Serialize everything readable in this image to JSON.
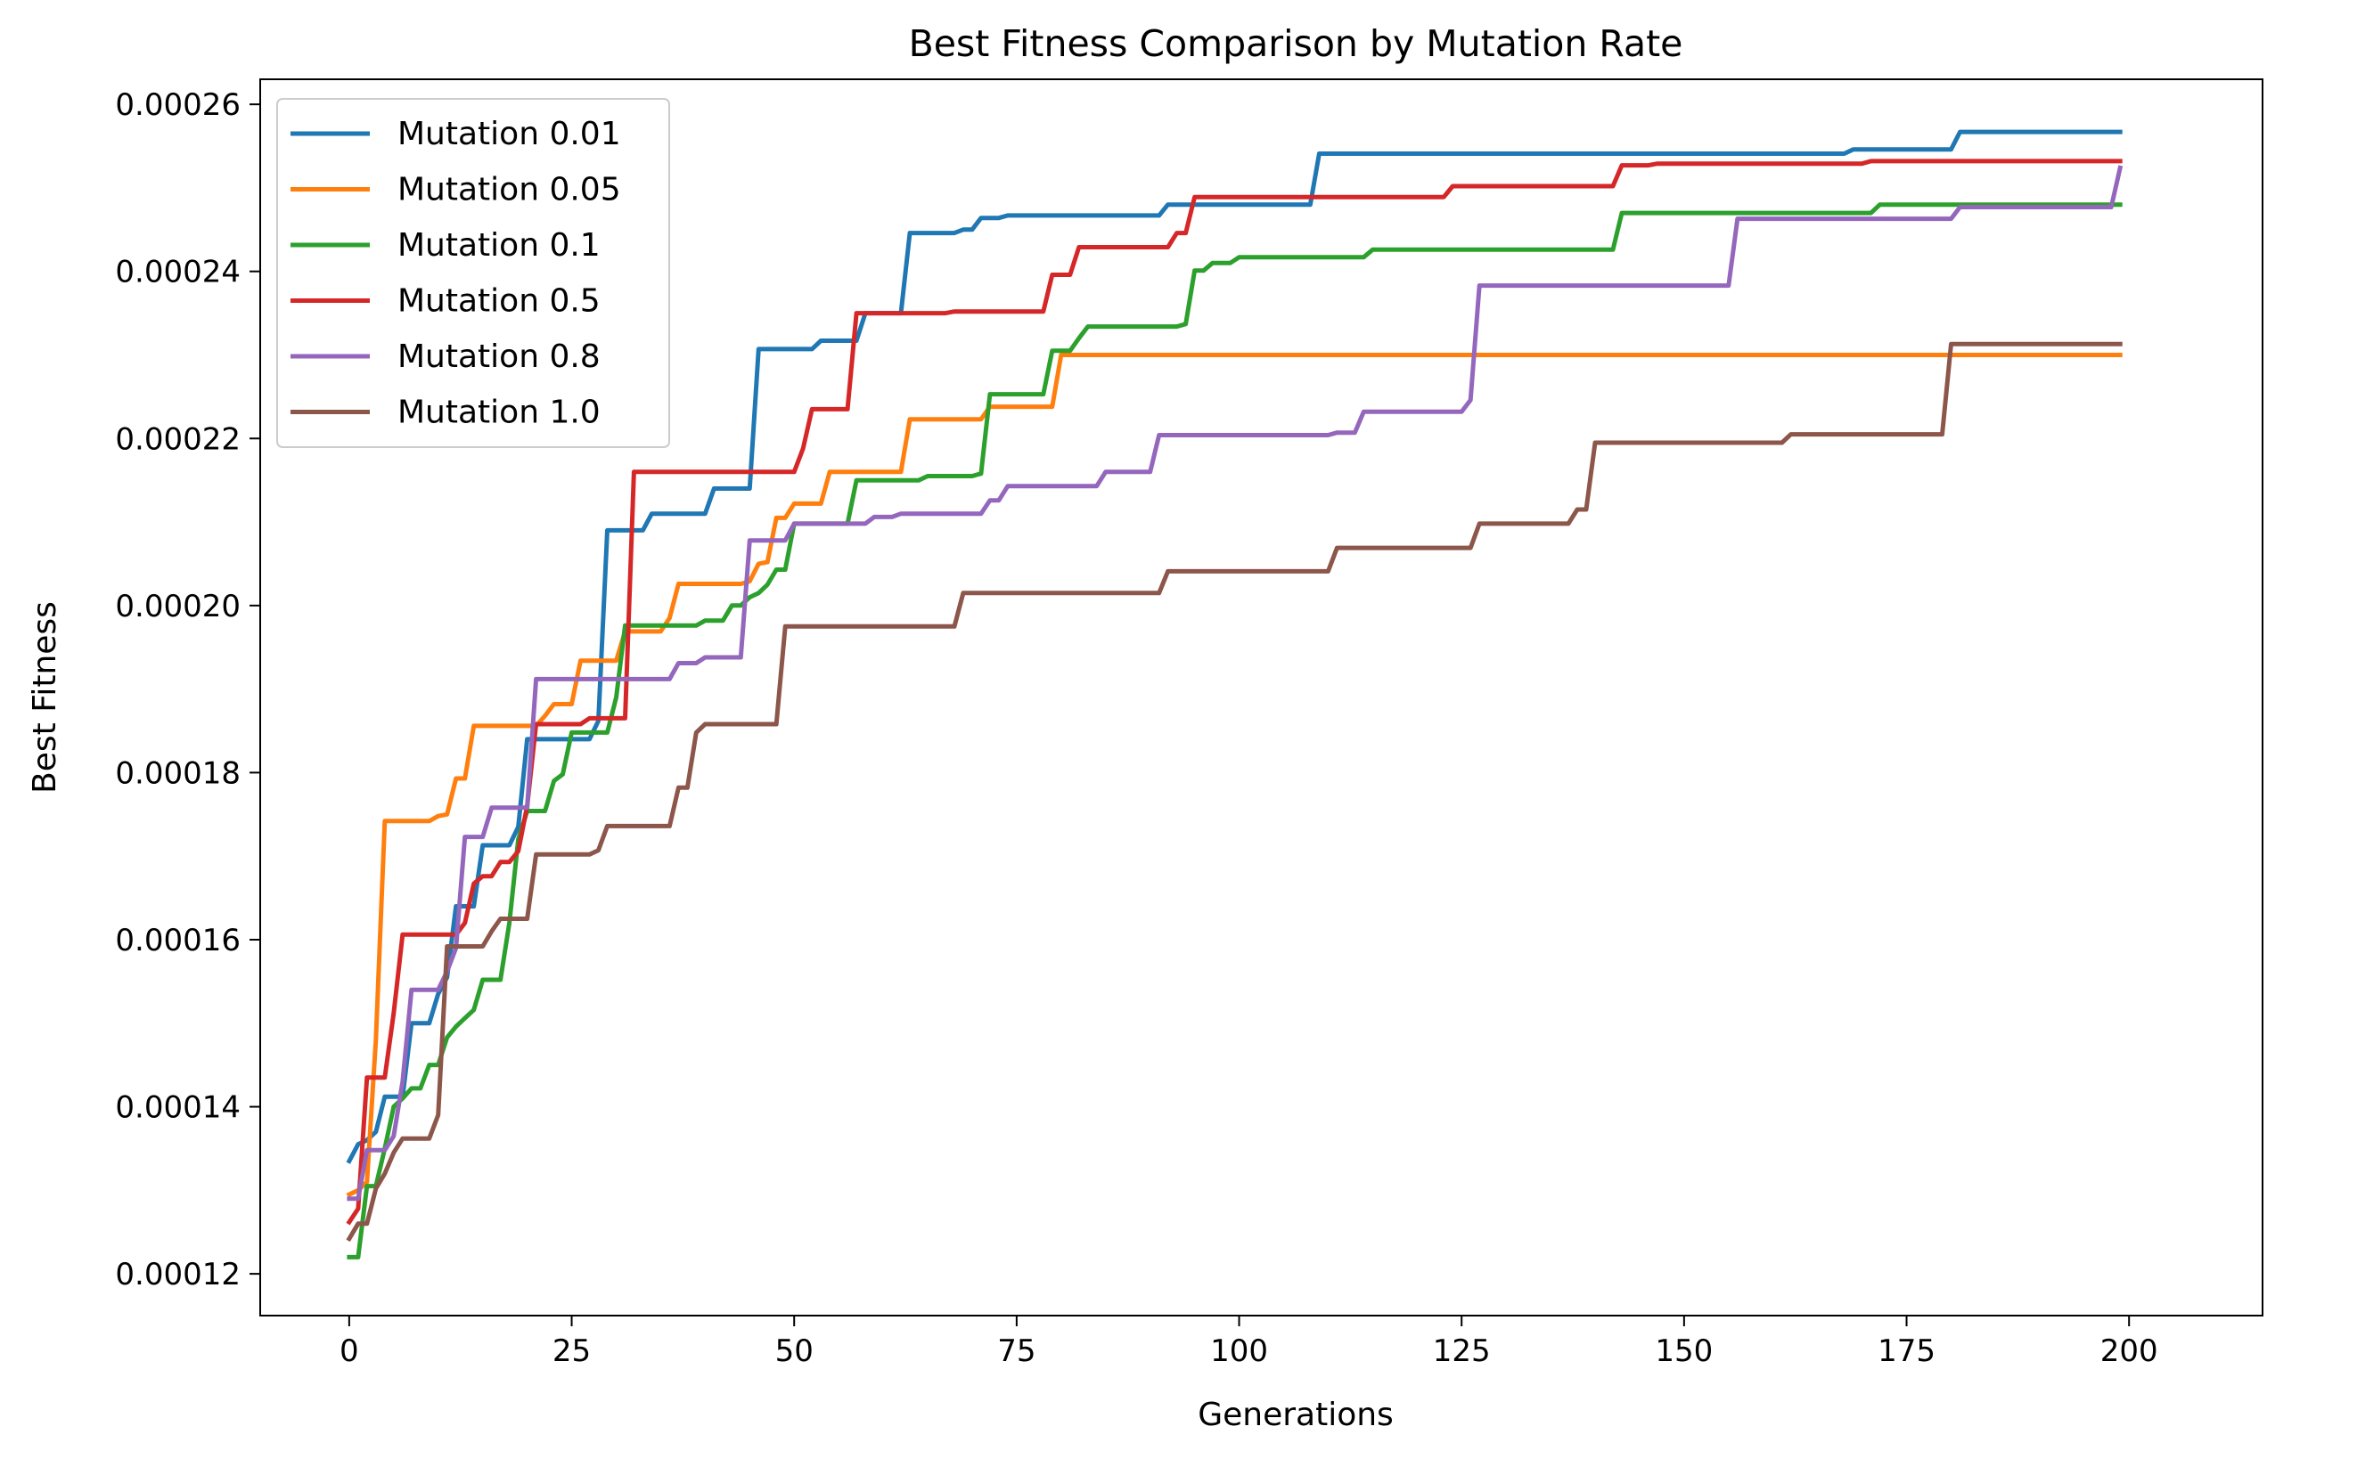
{
  "chart_data": {
    "type": "line",
    "title": "Best Fitness Comparison by Mutation Rate",
    "xlabel": "Generations",
    "ylabel": "Best Fitness",
    "xlim": [
      -10,
      215
    ],
    "ylim": [
      0.000115,
      0.000263
    ],
    "xticks": [
      0,
      25,
      50,
      75,
      100,
      125,
      150,
      175,
      200
    ],
    "xtick_labels": [
      "0",
      "25",
      "50",
      "75",
      "100",
      "125",
      "150",
      "175",
      "200"
    ],
    "yticks": [
      0.00012,
      0.00014,
      0.00016,
      0.00018,
      0.0002,
      0.00022,
      0.00024,
      0.00026
    ],
    "ytick_labels": [
      "0.00012",
      "0.00014",
      "0.00016",
      "0.00018",
      "0.00020",
      "0.00022",
      "0.00024",
      "0.00026"
    ],
    "grid": false,
    "legend_position": "top-left",
    "series": [
      {
        "name": "Mutation 0.01",
        "color": "#1f77b4",
        "points": [
          [
            0,
            0.0001335
          ],
          [
            1,
            0.0001355
          ],
          [
            2,
            0.000136
          ],
          [
            3,
            0.000137
          ],
          [
            4,
            0.0001412
          ],
          [
            6,
            0.0001412
          ],
          [
            7,
            0.00015
          ],
          [
            9,
            0.00015
          ],
          [
            10,
            0.0001535
          ],
          [
            11,
            0.0001555
          ],
          [
            12,
            0.000164
          ],
          [
            14,
            0.000164
          ],
          [
            15,
            0.0001713
          ],
          [
            18,
            0.0001713
          ],
          [
            19,
            0.0001735
          ],
          [
            20,
            0.000184
          ],
          [
            27,
            0.000184
          ],
          [
            28,
            0.0001862
          ],
          [
            29,
            0.000209
          ],
          [
            33,
            0.000209
          ],
          [
            34,
            0.000211
          ],
          [
            40,
            0.000211
          ],
          [
            41,
            0.000214
          ],
          [
            45,
            0.000214
          ],
          [
            46,
            0.0002307
          ],
          [
            52,
            0.0002307
          ],
          [
            53,
            0.0002317
          ],
          [
            57,
            0.0002317
          ],
          [
            58,
            0.000235
          ],
          [
            62,
            0.000235
          ],
          [
            63,
            0.0002446
          ],
          [
            68,
            0.0002446
          ],
          [
            69,
            0.000245
          ],
          [
            70,
            0.000245
          ],
          [
            71,
            0.0002464
          ],
          [
            73,
            0.0002464
          ],
          [
            74,
            0.0002467
          ],
          [
            91,
            0.0002467
          ],
          [
            92,
            0.000248
          ],
          [
            108,
            0.000248
          ],
          [
            109,
            0.0002541
          ],
          [
            168,
            0.0002541
          ],
          [
            169,
            0.0002546
          ],
          [
            180,
            0.0002546
          ],
          [
            181,
            0.0002567
          ],
          [
            199,
            0.0002567
          ]
        ]
      },
      {
        "name": "Mutation 0.05",
        "color": "#ff7f0e",
        "points": [
          [
            0,
            0.0001295
          ],
          [
            1,
            0.00013
          ],
          [
            2,
            0.000131
          ],
          [
            3,
            0.000148
          ],
          [
            4,
            0.0001742
          ],
          [
            9,
            0.0001742
          ],
          [
            10,
            0.0001748
          ],
          [
            11,
            0.000175
          ],
          [
            12,
            0.0001793
          ],
          [
            13,
            0.0001793
          ],
          [
            14,
            0.0001856
          ],
          [
            21,
            0.0001856
          ],
          [
            22,
            0.0001868
          ],
          [
            23,
            0.0001882
          ],
          [
            25,
            0.0001882
          ],
          [
            26,
            0.0001934
          ],
          [
            30,
            0.0001934
          ],
          [
            31,
            0.0001969
          ],
          [
            35,
            0.0001969
          ],
          [
            36,
            0.0001985
          ],
          [
            37,
            0.0002026
          ],
          [
            44,
            0.0002026
          ],
          [
            45,
            0.0002029
          ],
          [
            46,
            0.000205
          ],
          [
            47,
            0.0002052
          ],
          [
            48,
            0.0002105
          ],
          [
            49,
            0.0002105
          ],
          [
            50,
            0.0002122
          ],
          [
            53,
            0.0002122
          ],
          [
            54,
            0.000216
          ],
          [
            62,
            0.000216
          ],
          [
            63,
            0.0002223
          ],
          [
            71,
            0.0002223
          ],
          [
            72,
            0.0002238
          ],
          [
            79,
            0.0002238
          ],
          [
            80,
            0.00023
          ],
          [
            199,
            0.00023
          ]
        ]
      },
      {
        "name": "Mutation 0.1",
        "color": "#2ca02c",
        "points": [
          [
            0,
            0.000122
          ],
          [
            1,
            0.000122
          ],
          [
            2,
            0.0001305
          ],
          [
            3,
            0.0001305
          ],
          [
            4,
            0.000135
          ],
          [
            5,
            0.00014
          ],
          [
            6,
            0.000141
          ],
          [
            7,
            0.0001422
          ],
          [
            8,
            0.0001422
          ],
          [
            9,
            0.000145
          ],
          [
            10,
            0.000145
          ],
          [
            11,
            0.0001483
          ],
          [
            12,
            0.0001496
          ],
          [
            13,
            0.0001506
          ],
          [
            14,
            0.0001516
          ],
          [
            15,
            0.0001552
          ],
          [
            17,
            0.0001552
          ],
          [
            18,
            0.000162
          ],
          [
            19,
            0.000172
          ],
          [
            20,
            0.0001754
          ],
          [
            22,
            0.0001754
          ],
          [
            23,
            0.000179
          ],
          [
            24,
            0.0001798
          ],
          [
            25,
            0.0001848
          ],
          [
            29,
            0.0001848
          ],
          [
            30,
            0.000189
          ],
          [
            31,
            0.0001976
          ],
          [
            39,
            0.0001976
          ],
          [
            40,
            0.0001982
          ],
          [
            42,
            0.0001982
          ],
          [
            43,
            0.0002
          ],
          [
            44,
            0.0002
          ],
          [
            45,
            0.000201
          ],
          [
            46,
            0.0002015
          ],
          [
            47,
            0.0002025
          ],
          [
            48,
            0.0002043
          ],
          [
            49,
            0.0002043
          ],
          [
            50,
            0.0002098
          ],
          [
            56,
            0.0002098
          ],
          [
            57,
            0.000215
          ],
          [
            64,
            0.000215
          ],
          [
            65,
            0.0002155
          ],
          [
            70,
            0.0002155
          ],
          [
            71,
            0.0002158
          ],
          [
            72,
            0.0002253
          ],
          [
            78,
            0.0002253
          ],
          [
            79,
            0.0002305
          ],
          [
            81,
            0.0002305
          ],
          [
            82,
            0.000232
          ],
          [
            83,
            0.0002334
          ],
          [
            93,
            0.0002334
          ],
          [
            94,
            0.0002337
          ],
          [
            95,
            0.0002401
          ],
          [
            96,
            0.0002401
          ],
          [
            97,
            0.000241
          ],
          [
            99,
            0.000241
          ],
          [
            100,
            0.0002417
          ],
          [
            114,
            0.0002417
          ],
          [
            115,
            0.0002426
          ],
          [
            142,
            0.0002426
          ],
          [
            143,
            0.000247
          ],
          [
            171,
            0.000247
          ],
          [
            172,
            0.000248
          ],
          [
            199,
            0.000248
          ]
        ]
      },
      {
        "name": "Mutation 0.5",
        "color": "#d62728",
        "points": [
          [
            0,
            0.0001262
          ],
          [
            1,
            0.0001278
          ],
          [
            2,
            0.0001435
          ],
          [
            4,
            0.0001435
          ],
          [
            5,
            0.0001512
          ],
          [
            6,
            0.0001606
          ],
          [
            12,
            0.0001606
          ],
          [
            13,
            0.000162
          ],
          [
            14,
            0.0001667
          ],
          [
            15,
            0.0001676
          ],
          [
            16,
            0.0001676
          ],
          [
            17,
            0.0001693
          ],
          [
            18,
            0.0001693
          ],
          [
            19,
            0.0001706
          ],
          [
            20,
            0.000176
          ],
          [
            21,
            0.0001858
          ],
          [
            26,
            0.0001858
          ],
          [
            27,
            0.0001865
          ],
          [
            31,
            0.0001865
          ],
          [
            32,
            0.000216
          ],
          [
            50,
            0.000216
          ],
          [
            51,
            0.0002188
          ],
          [
            52,
            0.0002235
          ],
          [
            56,
            0.0002235
          ],
          [
            57,
            0.000235
          ],
          [
            67,
            0.000235
          ],
          [
            68,
            0.0002352
          ],
          [
            78,
            0.0002352
          ],
          [
            79,
            0.0002396
          ],
          [
            81,
            0.0002396
          ],
          [
            82,
            0.0002429
          ],
          [
            92,
            0.0002429
          ],
          [
            93,
            0.0002446
          ],
          [
            94,
            0.0002446
          ],
          [
            95,
            0.0002489
          ],
          [
            123,
            0.0002489
          ],
          [
            124,
            0.0002502
          ],
          [
            142,
            0.0002502
          ],
          [
            143,
            0.0002527
          ],
          [
            146,
            0.0002527
          ],
          [
            147,
            0.0002529
          ],
          [
            170,
            0.0002529
          ],
          [
            171,
            0.0002532
          ],
          [
            199,
            0.0002532
          ]
        ]
      },
      {
        "name": "Mutation 0.8",
        "color": "#9467bd",
        "points": [
          [
            0,
            0.000129
          ],
          [
            1,
            0.000129
          ],
          [
            2,
            0.0001348
          ],
          [
            4,
            0.0001348
          ],
          [
            5,
            0.0001365
          ],
          [
            6,
            0.000143
          ],
          [
            7,
            0.000154
          ],
          [
            10,
            0.000154
          ],
          [
            11,
            0.0001562
          ],
          [
            12,
            0.000159
          ],
          [
            13,
            0.0001723
          ],
          [
            15,
            0.0001723
          ],
          [
            16,
            0.0001758
          ],
          [
            20,
            0.0001758
          ],
          [
            21,
            0.0001912
          ],
          [
            36,
            0.0001912
          ],
          [
            37,
            0.0001931
          ],
          [
            39,
            0.0001931
          ],
          [
            40,
            0.0001938
          ],
          [
            44,
            0.0001938
          ],
          [
            45,
            0.0002078
          ],
          [
            49,
            0.0002078
          ],
          [
            50,
            0.0002098
          ],
          [
            58,
            0.0002098
          ],
          [
            59,
            0.0002106
          ],
          [
            61,
            0.0002106
          ],
          [
            62,
            0.000211
          ],
          [
            71,
            0.000211
          ],
          [
            72,
            0.0002126
          ],
          [
            73,
            0.0002126
          ],
          [
            74,
            0.0002143
          ],
          [
            84,
            0.0002143
          ],
          [
            85,
            0.000216
          ],
          [
            90,
            0.000216
          ],
          [
            91,
            0.0002204
          ],
          [
            110,
            0.0002204
          ],
          [
            111,
            0.0002207
          ],
          [
            113,
            0.0002207
          ],
          [
            114,
            0.0002232
          ],
          [
            125,
            0.0002232
          ],
          [
            126,
            0.0002246
          ],
          [
            127,
            0.0002383
          ],
          [
            155,
            0.0002383
          ],
          [
            156,
            0.0002463
          ],
          [
            180,
            0.0002463
          ],
          [
            181,
            0.0002477
          ],
          [
            198,
            0.0002477
          ],
          [
            199,
            0.0002524
          ]
        ]
      },
      {
        "name": "Mutation 1.0",
        "color": "#8c564b",
        "points": [
          [
            0,
            0.0001242
          ],
          [
            1,
            0.000126
          ],
          [
            2,
            0.000126
          ],
          [
            3,
            0.0001302
          ],
          [
            4,
            0.000132
          ],
          [
            5,
            0.0001345
          ],
          [
            6,
            0.0001362
          ],
          [
            9,
            0.0001362
          ],
          [
            10,
            0.000139
          ],
          [
            11,
            0.0001592
          ],
          [
            15,
            0.0001592
          ],
          [
            16,
            0.000161
          ],
          [
            17,
            0.0001625
          ],
          [
            20,
            0.0001625
          ],
          [
            21,
            0.0001702
          ],
          [
            27,
            0.0001702
          ],
          [
            28,
            0.0001707
          ],
          [
            29,
            0.0001736
          ],
          [
            36,
            0.0001736
          ],
          [
            37,
            0.0001782
          ],
          [
            38,
            0.0001782
          ],
          [
            39,
            0.0001848
          ],
          [
            40,
            0.0001858
          ],
          [
            48,
            0.0001858
          ],
          [
            49,
            0.0001975
          ],
          [
            68,
            0.0001975
          ],
          [
            69,
            0.0002015
          ],
          [
            91,
            0.0002015
          ],
          [
            92,
            0.0002041
          ],
          [
            110,
            0.0002041
          ],
          [
            111,
            0.0002069
          ],
          [
            126,
            0.0002069
          ],
          [
            127,
            0.0002098
          ],
          [
            137,
            0.0002098
          ],
          [
            138,
            0.0002115
          ],
          [
            139,
            0.0002115
          ],
          [
            140,
            0.0002195
          ],
          [
            161,
            0.0002195
          ],
          [
            162,
            0.0002205
          ],
          [
            179,
            0.0002205
          ],
          [
            180,
            0.0002313
          ],
          [
            199,
            0.0002313
          ]
        ]
      }
    ]
  }
}
